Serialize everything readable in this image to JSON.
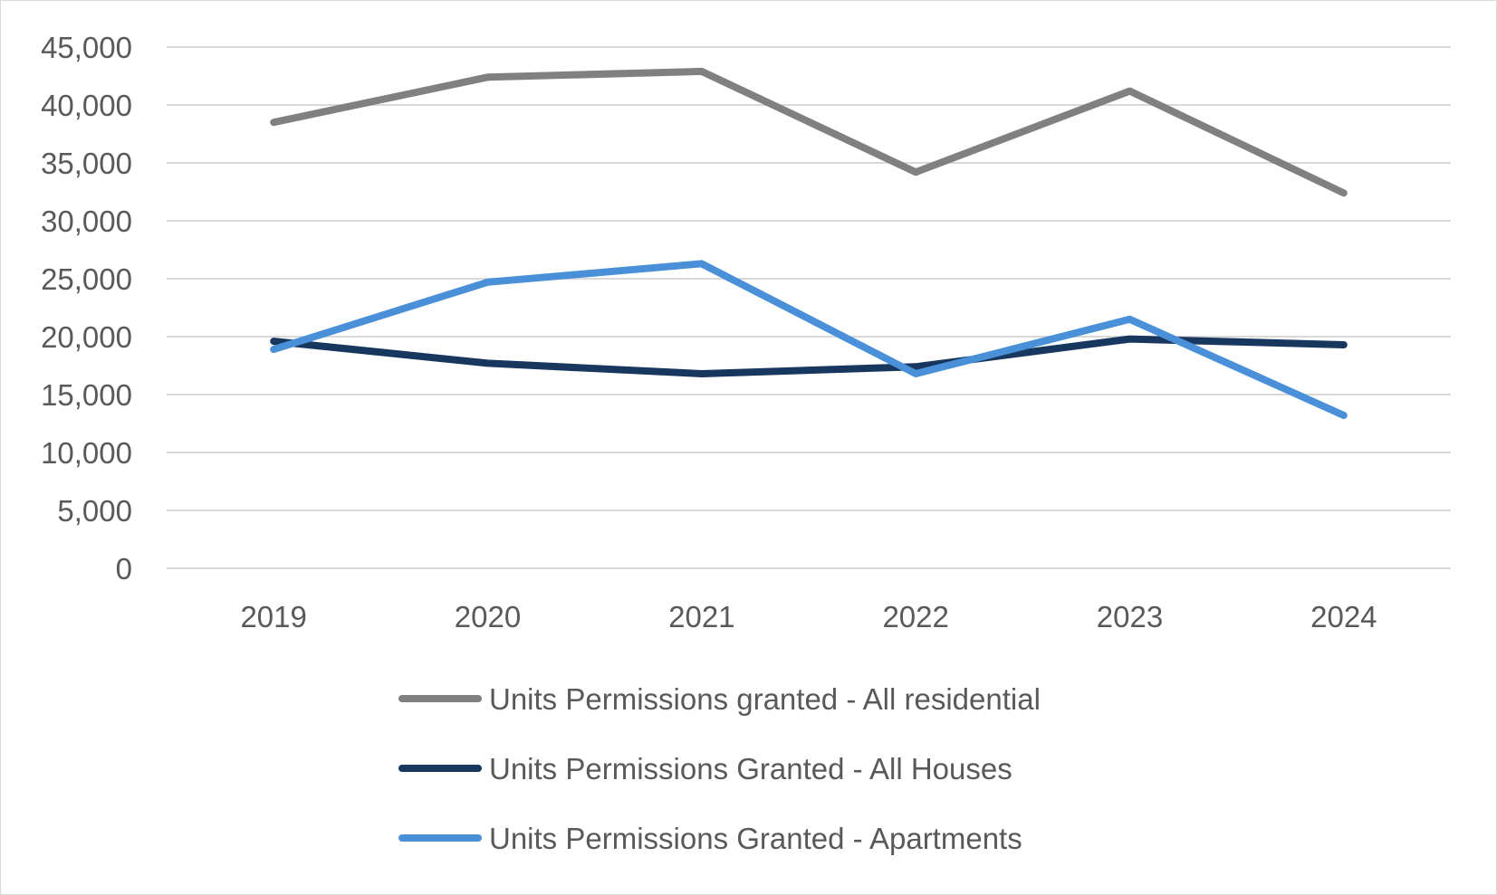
{
  "chart_data": {
    "type": "line",
    "title": "",
    "xlabel": "",
    "ylabel": "",
    "categories": [
      "2019",
      "2020",
      "2021",
      "2022",
      "2023",
      "2024"
    ],
    "ylim": [
      0,
      45000
    ],
    "y_ticks": [
      0,
      5000,
      10000,
      15000,
      20000,
      25000,
      30000,
      35000,
      40000,
      45000
    ],
    "y_tick_labels": [
      "0",
      "5,000",
      "10,000",
      "15,000",
      "20,000",
      "25,000",
      "30,000",
      "35,000",
      "40,000",
      "45,000"
    ],
    "grid": "horizontal",
    "legend_position": "bottom",
    "series": [
      {
        "name": "Units Permissions granted - All residential",
        "color": "#808080",
        "values": [
          38500,
          42400,
          42900,
          34200,
          41200,
          32400
        ]
      },
      {
        "name": "Units Permissions Granted - All Houses",
        "color": "#17375e",
        "values": [
          19600,
          17700,
          16800,
          17400,
          19800,
          19300
        ]
      },
      {
        "name": "Units Permissions Granted - Apartments",
        "color": "#4a90d9",
        "values": [
          18900,
          24700,
          26300,
          16800,
          21500,
          13200
        ]
      }
    ]
  }
}
